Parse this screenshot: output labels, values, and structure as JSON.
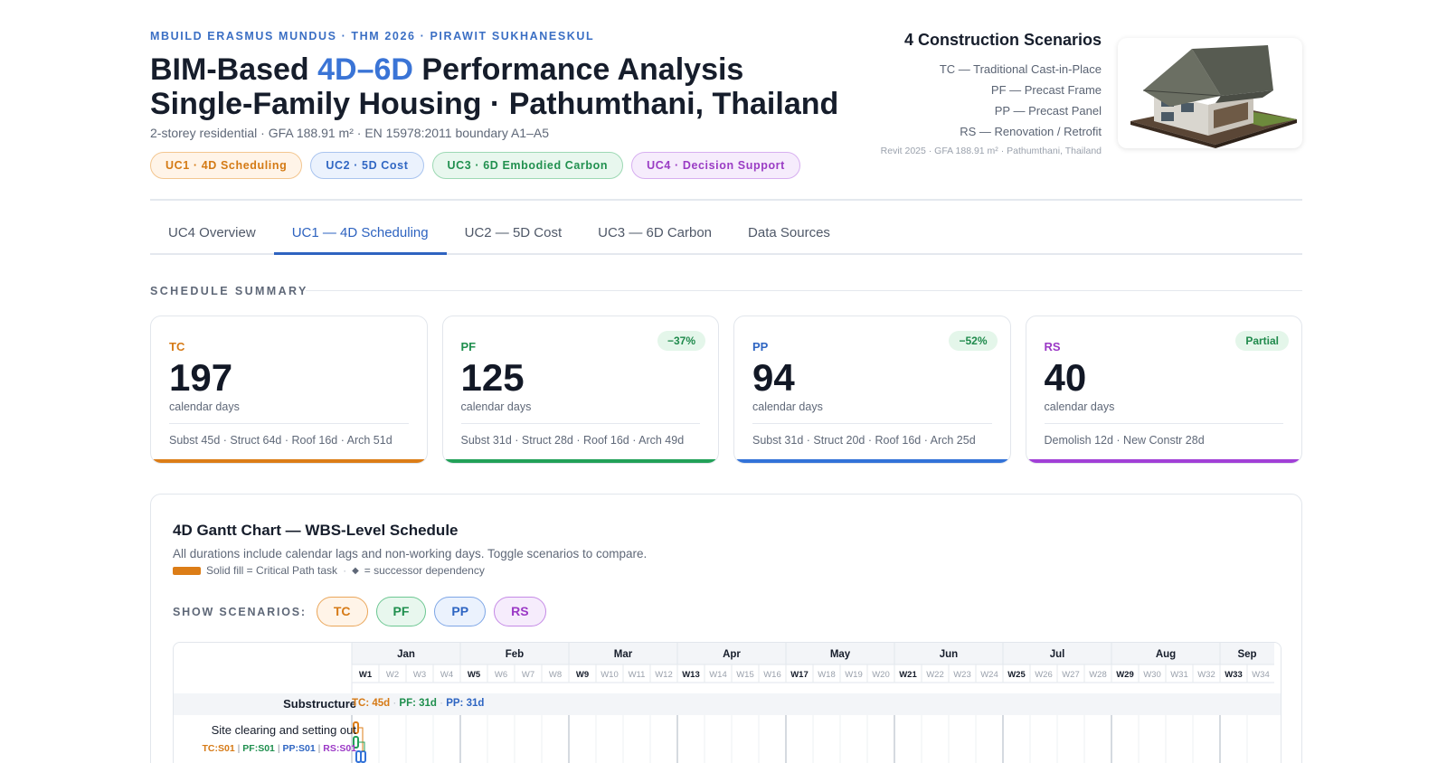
{
  "header": {
    "kicker": "MBUILD ERASMUS MUNDUS · THM 2026 · PIRAWIT SUKHANESKUL",
    "title_a": "BIM-Based ",
    "title_accent": "4D–6D",
    "title_b": " Performance Analysis",
    "title_line2": "Single-Family Housing · Pathumthani, Thailand",
    "subtitle": "2-storey residential · GFA 188.91 m² · EN 15978:2011 boundary A1–A5",
    "tags": [
      "UC1 · 4D Scheduling",
      "UC2 · 5D Cost",
      "UC3 · 6D Embodied Carbon",
      "UC4 · Decision Support"
    ]
  },
  "scenarios_panel": {
    "heading": "4 Construction Scenarios",
    "lines": [
      "TC — Traditional Cast-in-Place",
      "PF — Precast Frame",
      "PP — Precast Panel",
      "RS — Renovation / Retrofit"
    ],
    "meta": "Revit 2025 · GFA 188.91 m² · Pathumthani, Thailand"
  },
  "tabs": [
    "UC4 Overview",
    "UC1 — 4D Scheduling",
    "UC2 — 5D Cost",
    "UC3 — 6D Carbon",
    "Data Sources"
  ],
  "active_tab": 1,
  "summary": {
    "label": "SCHEDULE SUMMARY",
    "cards": [
      {
        "code": "TC",
        "days": "197",
        "unit": "calendar days",
        "breakdown": "Subst 45d · Struct 64d · Roof 16d · Arch 51d",
        "badge": "",
        "color": "#dc7d17"
      },
      {
        "code": "PF",
        "days": "125",
        "unit": "calendar days",
        "breakdown": "Subst 31d · Struct 28d · Roof 16d · Arch 49d",
        "badge": "−37%",
        "color": "#22a158"
      },
      {
        "code": "PP",
        "days": "94",
        "unit": "calendar days",
        "breakdown": "Subst 31d · Struct 20d · Roof 16d · Arch 25d",
        "badge": "−52%",
        "color": "#3272d8"
      },
      {
        "code": "RS",
        "days": "40",
        "unit": "calendar days",
        "breakdown": "Demolish 12d · New Constr 28d",
        "badge": "Partial",
        "color": "#a13fd6"
      }
    ]
  },
  "gantt": {
    "title": "4D Gantt Chart — WBS-Level Schedule",
    "description": "All durations include calendar lags and non-working days. Toggle scenarios to compare.",
    "legend_critical": "Solid fill = Critical Path task",
    "legend_dot": "·",
    "legend_diamond": "◆",
    "legend_successor": "= successor dependency",
    "show_label": "SHOW SCENARIOS:",
    "toggles": [
      "TC",
      "PF",
      "PP",
      "RS"
    ],
    "months": [
      "Jan",
      "Feb",
      "Mar",
      "Apr",
      "May",
      "Jun",
      "Jul",
      "Aug",
      "Sep"
    ],
    "weeks": [
      "W1",
      "W2",
      "W3",
      "W4",
      "W5",
      "W6",
      "W7",
      "W8",
      "W9",
      "W10",
      "W11",
      "W12",
      "W13",
      "W14",
      "W15",
      "W16",
      "W17",
      "W18",
      "W19",
      "W20",
      "W21",
      "W22",
      "W23",
      "W24",
      "W25",
      "W26",
      "W27",
      "W28",
      "W29",
      "W30",
      "W31",
      "W32",
      "W33",
      "W34"
    ],
    "month_start_weeks": [
      "W1",
      "W5",
      "W9",
      "W13",
      "W17",
      "W21",
      "W25",
      "W29",
      "W33"
    ],
    "group": {
      "name": "Substructure",
      "tc": "TC: 45d",
      "pf": "PF: 31d",
      "pp": "PP: 31d",
      "sep": "·"
    },
    "task": {
      "name": "Site clearing and setting out",
      "tc": "TC:S01",
      "pf": "PF:S01",
      "pp": "PP:S01",
      "rs": "RS:S01",
      "sep": "|"
    }
  }
}
